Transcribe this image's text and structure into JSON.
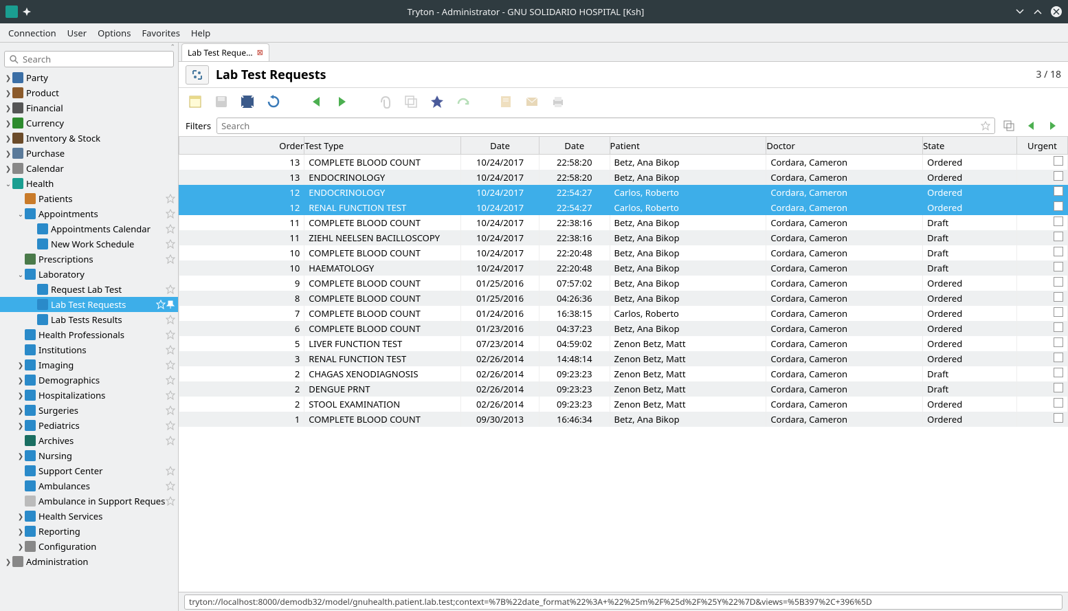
{
  "window_title": "Tryton - Administrator - GNU SOLIDARIO HOSPITAL [Ksh]",
  "menubar": [
    "Connection",
    "User",
    "Options",
    "Favorites",
    "Help"
  ],
  "sidebar_search_placeholder": "Search",
  "tree": [
    {
      "indent": 0,
      "twisty": ">",
      "icon": "#3b6ea5",
      "label": "Party"
    },
    {
      "indent": 0,
      "twisty": ">",
      "icon": "#8b5a2b",
      "label": "Product"
    },
    {
      "indent": 0,
      "twisty": ">",
      "icon": "#555",
      "label": "Financial"
    },
    {
      "indent": 0,
      "twisty": ">",
      "icon": "#2e8b2e",
      "label": "Currency"
    },
    {
      "indent": 0,
      "twisty": ">",
      "icon": "#6b4b2a",
      "label": "Inventory & Stock"
    },
    {
      "indent": 0,
      "twisty": ">",
      "icon": "#5a7a9a",
      "label": "Purchase"
    },
    {
      "indent": 0,
      "twisty": ">",
      "icon": "#888",
      "label": "Calendar"
    },
    {
      "indent": 0,
      "twisty": "v",
      "icon": "#1a9e91",
      "label": "Health"
    },
    {
      "indent": 1,
      "twisty": "",
      "icon": "#c97b2a",
      "label": "Patients",
      "star": true
    },
    {
      "indent": 1,
      "twisty": "v",
      "icon": "#2a8ac9",
      "label": "Appointments",
      "star": true
    },
    {
      "indent": 2,
      "twisty": "",
      "icon": "#2a8ac9",
      "label": "Appointments Calendar",
      "star": true
    },
    {
      "indent": 2,
      "twisty": "",
      "icon": "#2a8ac9",
      "label": "New Work Schedule",
      "star": true
    },
    {
      "indent": 1,
      "twisty": "",
      "icon": "#4a7a4a",
      "label": "Prescriptions",
      "star": true
    },
    {
      "indent": 1,
      "twisty": "v",
      "icon": "#2a8ac9",
      "label": "Laboratory"
    },
    {
      "indent": 2,
      "twisty": "",
      "icon": "#2a8ac9",
      "label": "Request Lab Test",
      "star": true
    },
    {
      "indent": 2,
      "twisty": "",
      "icon": "#2a8ac9",
      "label": "Lab Test Requests",
      "selected": true,
      "star": true
    },
    {
      "indent": 2,
      "twisty": "",
      "icon": "#2a8ac9",
      "label": "Lab Tests Results",
      "star": true
    },
    {
      "indent": 1,
      "twisty": "",
      "icon": "#2a8ac9",
      "label": "Health Professionals",
      "star": true
    },
    {
      "indent": 1,
      "twisty": "",
      "icon": "#2a8ac9",
      "label": "Institutions",
      "star": true
    },
    {
      "indent": 1,
      "twisty": ">",
      "icon": "#2a8ac9",
      "label": "Imaging",
      "star": true
    },
    {
      "indent": 1,
      "twisty": ">",
      "icon": "#2a8ac9",
      "label": "Demographics",
      "star": true
    },
    {
      "indent": 1,
      "twisty": ">",
      "icon": "#2a8ac9",
      "label": "Hospitalizations",
      "star": true
    },
    {
      "indent": 1,
      "twisty": ">",
      "icon": "#2a8ac9",
      "label": "Surgeries",
      "star": true
    },
    {
      "indent": 1,
      "twisty": ">",
      "icon": "#2a8ac9",
      "label": "Pediatrics",
      "star": true
    },
    {
      "indent": 1,
      "twisty": "",
      "icon": "#1a6e61",
      "label": "Archives",
      "star": true
    },
    {
      "indent": 1,
      "twisty": ">",
      "icon": "#2a8ac9",
      "label": "Nursing"
    },
    {
      "indent": 1,
      "twisty": "",
      "icon": "#2a8ac9",
      "label": "Support Center",
      "star": true
    },
    {
      "indent": 1,
      "twisty": "",
      "icon": "#2a8ac9",
      "label": "Ambulances",
      "star": true
    },
    {
      "indent": 1,
      "twisty": "",
      "icon": "#bbb",
      "label": "Ambulance in Support Reques",
      "star": true
    },
    {
      "indent": 1,
      "twisty": ">",
      "icon": "#2a8ac9",
      "label": "Health Services"
    },
    {
      "indent": 1,
      "twisty": ">",
      "icon": "#2a8ac9",
      "label": "Reporting"
    },
    {
      "indent": 1,
      "twisty": ">",
      "icon": "#888",
      "label": "Configuration"
    },
    {
      "indent": 0,
      "twisty": ">",
      "icon": "#888",
      "label": "Administration"
    }
  ],
  "tab_label": "Lab Test Reque…",
  "page_title": "Lab Test Requests",
  "record_pos": "3 / 18",
  "filters_label": "Filters",
  "filter_placeholder": "Search",
  "columns": [
    "Order",
    "Test Type",
    "Date",
    "Date",
    "Patient",
    "Doctor",
    "State",
    "Urgent"
  ],
  "rows": [
    {
      "order": "13",
      "test": "COMPLETE BLOOD COUNT",
      "d1": "10/24/2017",
      "d2": "22:58:20",
      "patient": "Betz, Ana Bikop",
      "doctor": "Cordara, Cameron",
      "state": "Ordered"
    },
    {
      "order": "13",
      "test": "ENDOCRINOLOGY",
      "d1": "10/24/2017",
      "d2": "22:58:20",
      "patient": "Betz, Ana Bikop",
      "doctor": "Cordara, Cameron",
      "state": "Ordered"
    },
    {
      "order": "12",
      "test": "ENDOCRINOLOGY",
      "d1": "10/24/2017",
      "d2": "22:54:27",
      "patient": "Carlos, Roberto",
      "doctor": "Cordara, Cameron",
      "state": "Ordered",
      "selected": true
    },
    {
      "order": "12",
      "test": "RENAL FUNCTION TEST",
      "d1": "10/24/2017",
      "d2": "22:54:27",
      "patient": "Carlos, Roberto",
      "doctor": "Cordara, Cameron",
      "state": "Ordered",
      "selected": true
    },
    {
      "order": "11",
      "test": "COMPLETE BLOOD COUNT",
      "d1": "10/24/2017",
      "d2": "22:38:16",
      "patient": "Betz, Ana Bikop",
      "doctor": "Cordara, Cameron",
      "state": "Draft"
    },
    {
      "order": "11",
      "test": "ZIEHL NEELSEN BACILLOSCOPY",
      "d1": "10/24/2017",
      "d2": "22:38:16",
      "patient": "Betz, Ana Bikop",
      "doctor": "Cordara, Cameron",
      "state": "Draft"
    },
    {
      "order": "10",
      "test": "COMPLETE BLOOD COUNT",
      "d1": "10/24/2017",
      "d2": "22:20:48",
      "patient": "Betz, Ana Bikop",
      "doctor": "Cordara, Cameron",
      "state": "Draft"
    },
    {
      "order": "10",
      "test": "HAEMATOLOGY",
      "d1": "10/24/2017",
      "d2": "22:20:48",
      "patient": "Betz, Ana Bikop",
      "doctor": "Cordara, Cameron",
      "state": "Draft"
    },
    {
      "order": "9",
      "test": "COMPLETE BLOOD COUNT",
      "d1": "01/25/2016",
      "d2": "07:57:02",
      "patient": "Betz, Ana Bikop",
      "doctor": "Cordara, Cameron",
      "state": "Ordered"
    },
    {
      "order": "8",
      "test": "COMPLETE BLOOD COUNT",
      "d1": "01/25/2016",
      "d2": "04:26:36",
      "patient": "Betz, Ana Bikop",
      "doctor": "Cordara, Cameron",
      "state": "Ordered"
    },
    {
      "order": "7",
      "test": "COMPLETE BLOOD COUNT",
      "d1": "01/24/2016",
      "d2": "16:38:15",
      "patient": "Carlos, Roberto",
      "doctor": "Cordara, Cameron",
      "state": "Ordered"
    },
    {
      "order": "6",
      "test": "COMPLETE BLOOD COUNT",
      "d1": "01/23/2016",
      "d2": "04:37:23",
      "patient": "Betz, Ana Bikop",
      "doctor": "Cordara, Cameron",
      "state": "Ordered"
    },
    {
      "order": "5",
      "test": "LIVER FUNCTION TEST",
      "d1": "07/23/2014",
      "d2": "04:59:02",
      "patient": "Zenon Betz, Matt",
      "doctor": "Cordara, Cameron",
      "state": "Ordered"
    },
    {
      "order": "3",
      "test": "RENAL FUNCTION TEST",
      "d1": "02/26/2014",
      "d2": "14:48:14",
      "patient": "Zenon Betz, Matt",
      "doctor": "Cordara, Cameron",
      "state": "Ordered"
    },
    {
      "order": "2",
      "test": "CHAGAS XENODIAGNOSIS",
      "d1": "02/26/2014",
      "d2": "09:23:23",
      "patient": "Zenon Betz, Matt",
      "doctor": "Cordara, Cameron",
      "state": "Draft"
    },
    {
      "order": "2",
      "test": "DENGUE PRNT",
      "d1": "02/26/2014",
      "d2": "09:23:23",
      "patient": "Zenon Betz, Matt",
      "doctor": "Cordara, Cameron",
      "state": "Draft"
    },
    {
      "order": "2",
      "test": "STOOL EXAMINATION",
      "d1": "02/26/2014",
      "d2": "09:23:23",
      "patient": "Zenon Betz, Matt",
      "doctor": "Cordara, Cameron",
      "state": "Ordered"
    },
    {
      "order": "1",
      "test": "COMPLETE BLOOD COUNT",
      "d1": "09/30/2013",
      "d2": "16:46:34",
      "patient": "Betz, Ana Bikop",
      "doctor": "Cordara, Cameron",
      "state": "Ordered"
    }
  ],
  "status_url": "tryton://localhost:8000/demodb32/model/gnuhealth.patient.lab.test;context=%7B%22date_format%22%3A+%22%25m%2F%25d%2F%25Y%22%7D&views=%5B397%2C+396%5D",
  "colors": {
    "selection": "#3daee9",
    "titlebar": "#2f3b40",
    "bg": "#eff0f1"
  }
}
